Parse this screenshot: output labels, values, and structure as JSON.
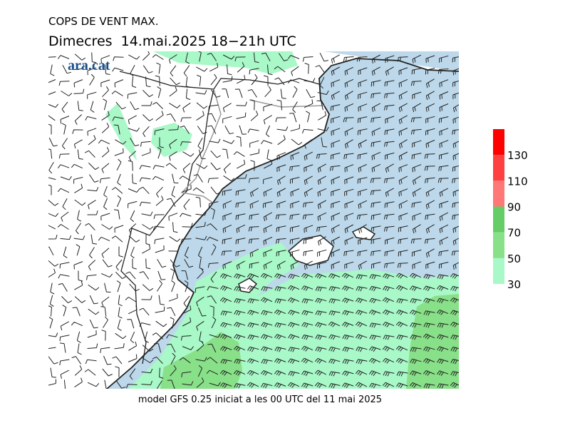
{
  "header": {
    "title": "COPS DE VENT MAX.",
    "subtitle": "Dimecres  14.mai.2025 18−21h UTC",
    "logo": "ara.cat"
  },
  "footer": "model GFS 0.25 iniciat a les 00 UTC del 11 mai 2025",
  "legend": {
    "range": [
      30,
      150
    ],
    "ticks": [
      30,
      50,
      70,
      90,
      110,
      130
    ],
    "bands": [
      {
        "from": 30,
        "to": 50,
        "color": "#a8f8c8"
      },
      {
        "from": 50,
        "to": 70,
        "color": "#88e088"
      },
      {
        "from": 70,
        "to": 90,
        "color": "#66cc66"
      },
      {
        "from": 90,
        "to": 110,
        "color": "#ff7777"
      },
      {
        "from": 110,
        "to": 130,
        "color": "#ff4040"
      },
      {
        "from": 130,
        "to": 150,
        "color": "#ff0000"
      }
    ]
  }
}
